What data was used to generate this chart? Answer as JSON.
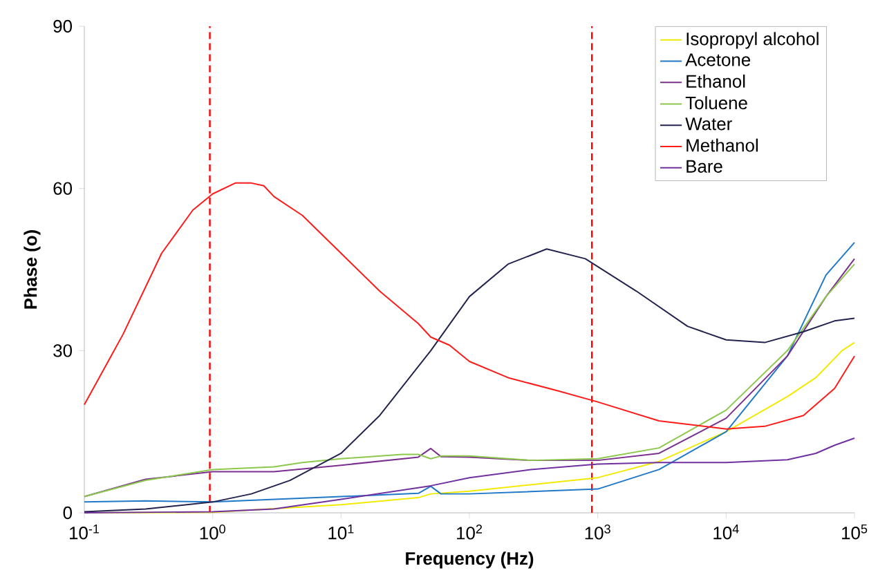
{
  "chart_data": {
    "type": "line",
    "xlabel": "Frequency (Hz)",
    "ylabel": "Phase (o)",
    "log": "x",
    "xlim": [
      0.1,
      100000
    ],
    "ylim": [
      0,
      90
    ],
    "xticks": [
      {
        "value": 0.1,
        "label": "10$^{-1}$"
      },
      {
        "value": 1,
        "label": "10$^{0}$"
      },
      {
        "value": 10,
        "label": "10$^{1}$"
      },
      {
        "value": 100,
        "label": "10$^{2}$"
      },
      {
        "value": 1000,
        "label": "10$^{3}$"
      },
      {
        "value": 10000,
        "label": "10$^{4}$"
      },
      {
        "value": 100000,
        "label": "10$^{5}$"
      }
    ],
    "yticks": [
      0,
      30,
      60,
      90
    ],
    "grid": false,
    "legend": "top right",
    "line_style": "solid",
    "ref_lines": [
      {
        "axis": "x",
        "value": 0.95,
        "label": null,
        "color": "#ff0000",
        "line_style": "dashed"
      },
      {
        "axis": "x",
        "value": 900,
        "label": null,
        "color": "#ff0000",
        "line_style": "dashed"
      }
    ],
    "series": [
      {
        "name": "Isopropyl alcohol",
        "color": "#f2ea00",
        "x": [
          0.1,
          1,
          10,
          40,
          50,
          100,
          1000,
          3000,
          10000,
          30000,
          50000,
          80000,
          100000
        ],
        "values": [
          0,
          0.1,
          1.5,
          2.8,
          3.5,
          4,
          6.5,
          9.5,
          15,
          21.5,
          25,
          30,
          31.5
        ]
      },
      {
        "name": "Acetone",
        "color": "#1f78c8",
        "x": [
          0.1,
          0.3,
          1,
          10,
          40,
          50,
          60,
          100,
          1000,
          3000,
          10000,
          30000,
          60000,
          100000
        ],
        "values": [
          2,
          2.2,
          2,
          3,
          3.6,
          4.9,
          3.5,
          3.5,
          4.4,
          8,
          15,
          29,
          44,
          50
        ]
      },
      {
        "name": "Ethanol",
        "color": "#7a2e8e",
        "x": [
          0.1,
          0.3,
          1,
          3,
          10,
          40,
          50,
          60,
          100,
          300,
          1000,
          3000,
          10000,
          30000,
          60000,
          100000
        ],
        "values": [
          3,
          6.2,
          7.6,
          7.6,
          8.8,
          10.3,
          11.9,
          10.4,
          10.3,
          9.7,
          9.7,
          11,
          17.5,
          29,
          40,
          47
        ]
      },
      {
        "name": "Toluene",
        "color": "#8cc84b",
        "x": [
          0.1,
          0.3,
          1,
          3,
          5,
          10,
          30,
          40,
          50,
          60,
          100,
          300,
          1000,
          3000,
          10000,
          30000,
          60000,
          100000
        ],
        "values": [
          3,
          6,
          8,
          8.5,
          9.3,
          10,
          10.8,
          10.8,
          10,
          10.5,
          10.5,
          9.7,
          10,
          12,
          19,
          30,
          40,
          46
        ]
      },
      {
        "name": "Water",
        "color": "#22224e",
        "x": [
          0.1,
          0.3,
          1,
          2,
          4,
          10,
          20,
          50,
          100,
          200,
          400,
          800,
          2000,
          5000,
          10000,
          20000,
          40000,
          70000,
          100000
        ],
        "values": [
          0.2,
          0.7,
          2,
          3.5,
          6,
          11,
          18,
          30,
          40,
          46,
          48.8,
          47,
          41,
          34.5,
          32,
          31.5,
          33.5,
          35.5,
          36
        ]
      },
      {
        "name": "Methanol",
        "color": "#ff1a1a",
        "x": [
          0.1,
          0.2,
          0.4,
          0.7,
          1,
          1.5,
          2,
          2.5,
          3,
          5,
          10,
          20,
          40,
          50,
          70,
          100,
          200,
          500,
          1000,
          3000,
          10000,
          20000,
          40000,
          70000,
          100000
        ],
        "values": [
          20,
          33,
          48,
          56,
          59,
          61,
          61,
          60.5,
          58.5,
          55,
          48,
          41,
          35,
          32.5,
          31,
          28,
          25,
          22.5,
          20.5,
          17,
          15.5,
          16,
          18,
          23,
          29
        ]
      },
      {
        "name": "Bare",
        "color": "#7030a0",
        "x": [
          0.1,
          1,
          3,
          10,
          50,
          100,
          300,
          1000,
          3000,
          10000,
          30000,
          50000,
          70000,
          100000
        ],
        "values": [
          0,
          0.2,
          0.7,
          2.5,
          5,
          6.5,
          8,
          9,
          9.3,
          9.3,
          9.8,
          11,
          12.5,
          13.8
        ]
      }
    ]
  }
}
